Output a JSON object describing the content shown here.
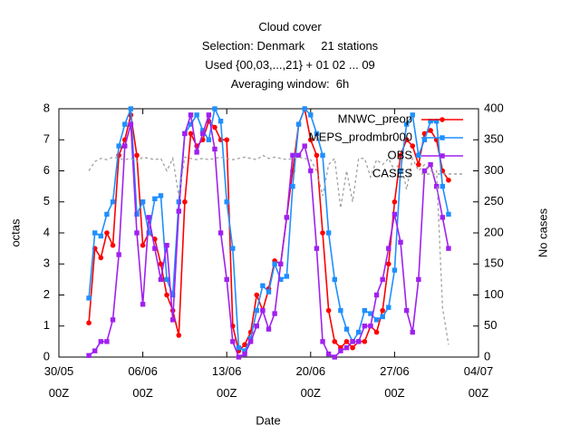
{
  "chart_data": {
    "type": "line",
    "title": "Cloud cover\nSelection: Denmark     21 stations\nUsed {00,03,...,21} + 01 02 ... 09\nAveraging window:  6h",
    "xlabel": "Date",
    "ylabel": "octas",
    "y2label": "No cases",
    "xlim": [
      "30/05 00Z",
      "04/07 00Z"
    ],
    "xticks": [
      {
        "value": "30/05 00Z",
        "label": "30/05\n00Z"
      },
      {
        "value": "06/06 00Z",
        "label": "06/06\n00Z"
      },
      {
        "value": "13/06 00Z",
        "label": "13/06\n00Z"
      },
      {
        "value": "20/06 00Z",
        "label": "20/06\n00Z"
      },
      {
        "value": "27/06 00Z",
        "label": "27/06\n00Z"
      },
      {
        "value": "04/07 00Z",
        "label": "04/07\n00Z"
      }
    ],
    "ylim": [
      0,
      8
    ],
    "yticks": [
      0,
      1,
      2,
      3,
      4,
      5,
      6,
      7,
      8
    ],
    "y2lim": [
      0,
      400
    ],
    "y2ticks": [
      0,
      50,
      100,
      150,
      200,
      250,
      300,
      350,
      400
    ],
    "grid": false,
    "legend": "top-right",
    "x": [
      "01/06 12Z",
      "02/06 00Z",
      "02/06 12Z",
      "03/06 00Z",
      "03/06 12Z",
      "04/06 00Z",
      "04/06 12Z",
      "05/06 00Z",
      "05/06 12Z",
      "06/06 00Z",
      "06/06 12Z",
      "07/06 00Z",
      "07/06 12Z",
      "08/06 00Z",
      "08/06 12Z",
      "09/06 00Z",
      "09/06 12Z",
      "10/06 00Z",
      "10/06 12Z",
      "11/06 00Z",
      "11/06 12Z",
      "12/06 00Z",
      "12/06 12Z",
      "13/06 00Z",
      "13/06 12Z",
      "14/06 00Z",
      "14/06 12Z",
      "15/06 00Z",
      "15/06 12Z",
      "16/06 00Z",
      "16/06 12Z",
      "17/06 00Z",
      "17/06 12Z",
      "18/06 00Z",
      "18/06 12Z",
      "19/06 00Z",
      "19/06 12Z",
      "20/06 00Z",
      "20/06 12Z",
      "21/06 00Z",
      "21/06 12Z",
      "22/06 00Z",
      "22/06 12Z",
      "23/06 00Z",
      "23/06 12Z",
      "24/06 00Z",
      "24/06 12Z",
      "25/06 00Z",
      "25/06 12Z",
      "26/06 00Z",
      "26/06 12Z",
      "27/06 00Z",
      "27/06 12Z",
      "28/06 00Z",
      "28/06 12Z",
      "29/06 00Z",
      "29/06 12Z",
      "30/06 00Z",
      "30/06 12Z",
      "01/07 00Z",
      "01/07 12Z"
    ],
    "series": [
      {
        "name": "MNWC_preop",
        "color": "#ff0000",
        "marker": "circle",
        "values": [
          1.1,
          3.5,
          3.2,
          4.0,
          3.6,
          6.5,
          7.0,
          7.8,
          6.5,
          3.6,
          4.0,
          3.8,
          3.0,
          2.0,
          1.5,
          0.7,
          5.0,
          7.2,
          6.8,
          7.0,
          7.6,
          7.4,
          7.0,
          7.0,
          1.0,
          0.2,
          0.4,
          0.8,
          2.0,
          1.5,
          2.2,
          3.1,
          3.0,
          4.5,
          6.0,
          7.5,
          8.0,
          7.0,
          6.5,
          4.0,
          1.5,
          0.5,
          0.3,
          0.5,
          0.3,
          0.5,
          0.5,
          1.0,
          0.8,
          1.5,
          3.0,
          5.0,
          6.5,
          7.0,
          6.8,
          6.2,
          7.2,
          7.3,
          7.0,
          6.0,
          5.7
        ]
      },
      {
        "name": "MEPS_prodmbr000",
        "color": "#1e8fff",
        "marker": "square",
        "values": [
          1.9,
          4.0,
          3.9,
          4.6,
          5.0,
          6.8,
          7.5,
          8.0,
          4.6,
          5.0,
          4.0,
          5.1,
          5.2,
          2.5,
          2.0,
          5.0,
          7.2,
          7.5,
          7.8,
          7.3,
          7.0,
          8.0,
          7.6,
          5.0,
          3.5,
          0.3,
          0.2,
          0.6,
          1.5,
          2.3,
          2.1,
          3.0,
          2.5,
          2.6,
          5.5,
          7.5,
          8.0,
          7.8,
          7.2,
          6.5,
          4.0,
          2.5,
          1.5,
          0.9,
          0.5,
          0.8,
          1.5,
          1.4,
          1.2,
          1.3,
          1.6,
          2.8,
          6.0,
          7.5,
          7.8,
          6.5,
          7.0,
          7.6,
          7.6,
          5.5,
          4.6
        ]
      },
      {
        "name": "OBS",
        "color": "#a020f0",
        "marker": "square",
        "values": [
          0.05,
          0.2,
          0.5,
          0.5,
          1.2,
          3.3,
          6.8,
          7.5,
          4.0,
          1.7,
          4.5,
          3.5,
          2.5,
          3.6,
          1.2,
          4.7,
          7.2,
          7.8,
          6.6,
          7.2,
          7.8,
          6.7,
          4.0,
          2.5,
          0.5,
          0.0,
          0.1,
          0.5,
          1.0,
          1.5,
          0.9,
          1.4,
          3.0,
          4.5,
          6.5,
          6.5,
          6.8,
          6.0,
          3.5,
          0.5,
          0.1,
          0.0,
          0.2,
          0.3,
          0.5,
          0.5,
          1.0,
          1.0,
          2.0,
          2.5,
          3.5,
          4.6,
          3.7,
          1.5,
          0.8,
          2.5,
          6.0,
          6.2,
          5.5,
          4.5,
          3.5
        ]
      },
      {
        "name": "CASES",
        "color": "#a0a0a0",
        "marker": "none",
        "axis": "y2",
        "dashed": true,
        "values": [
          300,
          315,
          320,
          318,
          322,
          320,
          318,
          320,
          315,
          322,
          320,
          318,
          320,
          300,
          320,
          260,
          322,
          320,
          318,
          320,
          318,
          320,
          322,
          320,
          318,
          320,
          322,
          320,
          318,
          325,
          320,
          322,
          320,
          318,
          320,
          322,
          320,
          318,
          300,
          260,
          310,
          320,
          240,
          300,
          250,
          320,
          320,
          290,
          318,
          310,
          320,
          300,
          315,
          270,
          320,
          300,
          310,
          300,
          300,
          80,
          20
        ]
      }
    ]
  }
}
